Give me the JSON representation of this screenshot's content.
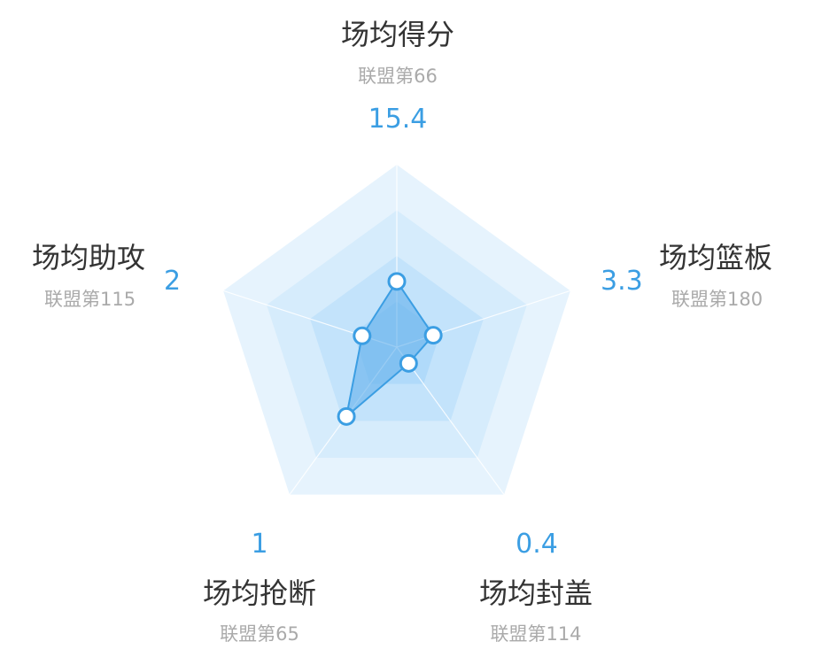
{
  "colors": {
    "accent": "#3b9ee3",
    "title": "#333333",
    "rank": "#aaaaaa",
    "rings": [
      "#e6f3fd",
      "#d6ecfc",
      "#c3e3fb",
      "#b0dafa"
    ],
    "series_fill": "#6ab4ec",
    "series_stroke": "#3b9ee3"
  },
  "chart_data": {
    "type": "radar",
    "axes": [
      {
        "key": "points",
        "title": "场均得分",
        "rank": "联盟第66",
        "value": "15.4",
        "v": 15.4,
        "norm": 0.36
      },
      {
        "key": "rebounds",
        "title": "场均篮板",
        "rank": "联盟第180",
        "value": "3.3",
        "v": 3.3,
        "norm": 0.21
      },
      {
        "key": "blocks",
        "title": "场均封盖",
        "rank": "联盟第114",
        "value": "0.4",
        "v": 0.4,
        "norm": 0.11
      },
      {
        "key": "steals",
        "title": "场均抢断",
        "rank": "联盟第65",
        "value": "1",
        "v": 1,
        "norm": 0.47
      },
      {
        "key": "assists",
        "title": "场均助攻",
        "rank": "联盟第115",
        "value": "2",
        "v": 2,
        "norm": 0.2
      }
    ],
    "rings": 4,
    "grid": true
  }
}
